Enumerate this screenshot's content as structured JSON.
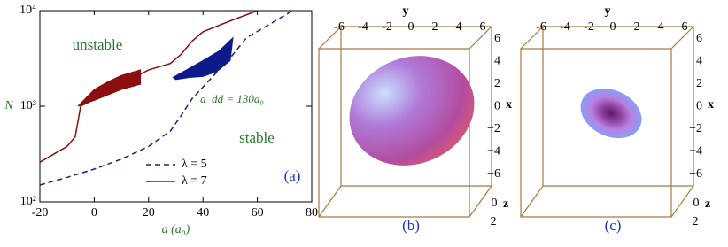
{
  "chart_data": {
    "type": "line",
    "xlabel": "a (a₀)",
    "ylabel": "N",
    "panel_label": "(a)",
    "xlim": [
      -20,
      80
    ],
    "xticks": [
      -20,
      0,
      20,
      40,
      60,
      80
    ],
    "ylim": [
      100,
      10000
    ],
    "log_y": true,
    "yticks": [
      {
        "value": 100,
        "label": "10²"
      },
      {
        "value": 1000,
        "label": "10³"
      },
      {
        "value": 10000,
        "label": "10⁴"
      }
    ],
    "grid": false,
    "legend": "lower center",
    "annotations": [
      "unstable",
      "stable",
      "a_dd = 130a₀"
    ],
    "series": [
      {
        "name": "λ = 5",
        "color": "#1a237e",
        "dash": true,
        "x": [
          -20,
          -10,
          0,
          10,
          20,
          28,
          32,
          36,
          44,
          50,
          56,
          63,
          73
        ],
        "values": [
          150,
          180,
          220,
          280,
          380,
          550,
          800,
          1200,
          2100,
          3200,
          5200,
          6800,
          10000
        ]
      },
      {
        "name": "λ = 7",
        "color": "#8b0f0f",
        "dash": false,
        "x": [
          -20,
          -10,
          -7,
          -5,
          0,
          10,
          20,
          28,
          32,
          36,
          40,
          50,
          60
        ],
        "values": [
          260,
          380,
          480,
          1000,
          1180,
          1700,
          2400,
          2800,
          3500,
          4800,
          6000,
          7800,
          10000
        ]
      }
    ],
    "regions": [
      {
        "color": "#8b0f0f",
        "x": [
          -6,
          0,
          5,
          10,
          17,
          17,
          10,
          0,
          -6
        ],
        "y": [
          1000,
          1500,
          1800,
          2100,
          2400,
          1700,
          1500,
          1150,
          1000
        ]
      },
      {
        "color": "#0d1a8c",
        "x": [
          29,
          35,
          40,
          46,
          51,
          50,
          45,
          40,
          35,
          30
        ],
        "y": [
          2000,
          2500,
          3000,
          3800,
          5200,
          3000,
          2300,
          2050,
          2000,
          1900
        ]
      }
    ]
  },
  "renderings": [
    {
      "label": "(b)",
      "y_axis": "y",
      "x_axis": "x",
      "z_axis": "z",
      "y_ticks": [
        "-6",
        "-4",
        "-2",
        "0",
        "2",
        "4",
        "6"
      ],
      "x_ticks": [
        "6",
        "4",
        "2",
        "0",
        "−2",
        "−4",
        "−6"
      ],
      "z_ticks": [
        "0",
        "2"
      ]
    },
    {
      "label": "(c)",
      "y_axis": "y",
      "x_axis": "x",
      "z_axis": "z",
      "y_ticks": [
        "-6",
        "-4",
        "-2",
        "0",
        "2",
        "4",
        "6"
      ],
      "x_ticks": [
        "6",
        "4",
        "2",
        "0",
        "−2",
        "−4",
        "−6"
      ],
      "z_ticks": [
        "0",
        "2"
      ]
    }
  ]
}
